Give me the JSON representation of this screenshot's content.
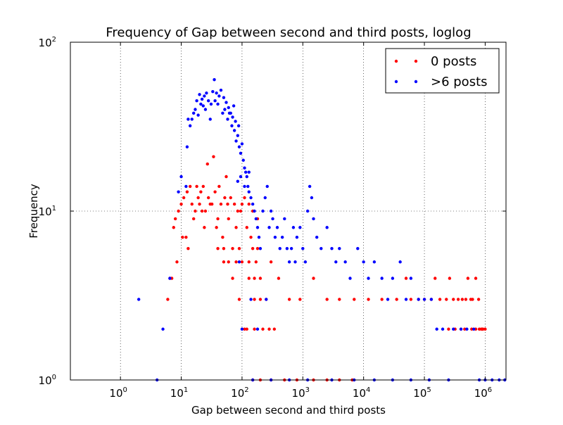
{
  "chart_data": {
    "type": "scatter",
    "title": "Frequency of Gap between second and third posts, loglog",
    "xlabel": "Gap between second and third posts",
    "ylabel": "Frequency",
    "xscale": "log",
    "yscale": "log",
    "xlim": [
      0.15,
      2200000
    ],
    "ylim": [
      1,
      100
    ],
    "grid": true,
    "legend_position": "top-right",
    "x_ticks": [
      {
        "value": 1,
        "base": "10",
        "exp": "0"
      },
      {
        "value": 10,
        "base": "10",
        "exp": "1"
      },
      {
        "value": 100,
        "base": "10",
        "exp": "2"
      },
      {
        "value": 1000,
        "base": "10",
        "exp": "3"
      },
      {
        "value": 10000,
        "base": "10",
        "exp": "4"
      },
      {
        "value": 100000,
        "base": "10",
        "exp": "5"
      },
      {
        "value": 1000000,
        "base": "10",
        "exp": "6"
      }
    ],
    "y_ticks": [
      {
        "value": 1,
        "base": "10",
        "exp": "0"
      },
      {
        "value": 10,
        "base": "10",
        "exp": "1"
      },
      {
        "value": 100,
        "base": "10",
        "exp": "2"
      }
    ],
    "series": [
      {
        "name": "0 posts",
        "color": "#ff0000",
        "points": [
          [
            6,
            3
          ],
          [
            6.5,
            4
          ],
          [
            7,
            4
          ],
          [
            7.5,
            8
          ],
          [
            8,
            9
          ],
          [
            8.5,
            5
          ],
          [
            9,
            10
          ],
          [
            10,
            11
          ],
          [
            10.5,
            7
          ],
          [
            11,
            12
          ],
          [
            12,
            7
          ],
          [
            12.5,
            13
          ],
          [
            13,
            6
          ],
          [
            14,
            14
          ],
          [
            15,
            11
          ],
          [
            16,
            9
          ],
          [
            17,
            10
          ],
          [
            18,
            14
          ],
          [
            19,
            12
          ],
          [
            20,
            11
          ],
          [
            21,
            13
          ],
          [
            22,
            10
          ],
          [
            23,
            14
          ],
          [
            24,
            8
          ],
          [
            25,
            10
          ],
          [
            27,
            19
          ],
          [
            28,
            12
          ],
          [
            30,
            11
          ],
          [
            32,
            11
          ],
          [
            34,
            21
          ],
          [
            36,
            13
          ],
          [
            38,
            8
          ],
          [
            40,
            9
          ],
          [
            42,
            14
          ],
          [
            45,
            11
          ],
          [
            48,
            7
          ],
          [
            50,
            6
          ],
          [
            52,
            12
          ],
          [
            55,
            16
          ],
          [
            58,
            11
          ],
          [
            60,
            9
          ],
          [
            65,
            12
          ],
          [
            70,
            6
          ],
          [
            75,
            11
          ],
          [
            80,
            8
          ],
          [
            85,
            10
          ],
          [
            90,
            6
          ],
          [
            95,
            10
          ],
          [
            100,
            11
          ],
          [
            110,
            12
          ],
          [
            120,
            8
          ],
          [
            130,
            5
          ],
          [
            140,
            7
          ],
          [
            150,
            6
          ],
          [
            160,
            4
          ],
          [
            170,
            5
          ],
          [
            180,
            6
          ],
          [
            200,
            4
          ],
          [
            60,
            5
          ],
          [
            80,
            5
          ],
          [
            100,
            5
          ],
          [
            130,
            4
          ],
          [
            160,
            3
          ],
          [
            200,
            3
          ],
          [
            250,
            3
          ],
          [
            120,
            2
          ],
          [
            160,
            2
          ],
          [
            220,
            2
          ],
          [
            280,
            2
          ],
          [
            340,
            2
          ],
          [
            70,
            4
          ],
          [
            90,
            3
          ],
          [
            110,
            2
          ],
          [
            50,
            5
          ],
          [
            40,
            6
          ],
          [
            150,
            10
          ],
          [
            180,
            9
          ],
          [
            130,
            11
          ],
          [
            300,
            5
          ],
          [
            400,
            4
          ],
          [
            600,
            3
          ],
          [
            900,
            3
          ],
          [
            1500,
            4
          ],
          [
            2500,
            3
          ],
          [
            4000,
            3
          ],
          [
            7000,
            3
          ],
          [
            12000,
            3
          ],
          [
            20000,
            3
          ],
          [
            35000,
            3
          ],
          [
            50000,
            4
          ],
          [
            60000,
            3
          ],
          [
            80000,
            3
          ],
          [
            100000,
            3
          ],
          [
            130000,
            3
          ],
          [
            150000,
            4
          ],
          [
            180000,
            3
          ],
          [
            230000,
            3
          ],
          [
            260000,
            4
          ],
          [
            300000,
            3
          ],
          [
            360000,
            3
          ],
          [
            420000,
            3
          ],
          [
            480000,
            3
          ],
          [
            520000,
            4
          ],
          [
            580000,
            3
          ],
          [
            620000,
            3
          ],
          [
            700000,
            4
          ],
          [
            780000,
            3
          ],
          [
            860000,
            2
          ],
          [
            920000,
            2
          ],
          [
            1000000,
            2
          ],
          [
            460000,
            2
          ],
          [
            600000,
            2
          ],
          [
            700000,
            2
          ],
          [
            800000,
            2
          ],
          [
            900000,
            2
          ],
          [
            250000,
            2
          ],
          [
            320000,
            2
          ],
          [
            400000,
            2
          ],
          [
            150,
            1
          ],
          [
            200,
            1
          ],
          [
            300,
            1
          ],
          [
            500,
            1
          ],
          [
            800,
            1
          ],
          [
            1500,
            1
          ],
          [
            2500,
            1
          ],
          [
            4000,
            1
          ],
          [
            6500,
            1
          ]
        ]
      },
      {
        "name": ">6 posts",
        "color": "#0000ff",
        "points": [
          [
            2,
            3
          ],
          [
            4,
            1
          ],
          [
            5,
            2
          ],
          [
            6.5,
            4
          ],
          [
            9,
            13
          ],
          [
            10,
            16
          ],
          [
            12,
            14
          ],
          [
            12.5,
            24
          ],
          [
            13,
            35
          ],
          [
            14,
            32
          ],
          [
            15,
            35
          ],
          [
            16,
            38
          ],
          [
            17,
            40
          ],
          [
            18,
            45
          ],
          [
            19,
            37
          ],
          [
            20,
            49
          ],
          [
            21,
            43
          ],
          [
            22,
            46
          ],
          [
            23,
            42
          ],
          [
            24,
            48
          ],
          [
            25,
            40
          ],
          [
            26,
            50
          ],
          [
            28,
            45
          ],
          [
            30,
            35
          ],
          [
            31,
            43
          ],
          [
            33,
            51
          ],
          [
            35,
            60
          ],
          [
            36,
            45
          ],
          [
            38,
            50
          ],
          [
            40,
            43
          ],
          [
            42,
            48
          ],
          [
            45,
            52
          ],
          [
            48,
            38
          ],
          [
            50,
            47
          ],
          [
            52,
            40
          ],
          [
            55,
            44
          ],
          [
            58,
            35
          ],
          [
            60,
            41
          ],
          [
            62,
            38
          ],
          [
            65,
            38
          ],
          [
            68,
            32
          ],
          [
            70,
            36
          ],
          [
            73,
            42
          ],
          [
            75,
            30
          ],
          [
            78,
            34
          ],
          [
            80,
            26
          ],
          [
            85,
            28
          ],
          [
            88,
            32
          ],
          [
            90,
            24
          ],
          [
            95,
            22
          ],
          [
            100,
            25
          ],
          [
            105,
            20
          ],
          [
            110,
            18
          ],
          [
            115,
            17
          ],
          [
            120,
            16
          ],
          [
            125,
            14
          ],
          [
            130,
            13
          ],
          [
            140,
            12
          ],
          [
            150,
            11
          ],
          [
            160,
            10
          ],
          [
            170,
            9
          ],
          [
            180,
            8
          ],
          [
            190,
            7
          ],
          [
            200,
            6
          ],
          [
            220,
            10
          ],
          [
            240,
            12
          ],
          [
            260,
            14
          ],
          [
            280,
            8
          ],
          [
            300,
            10
          ],
          [
            320,
            9
          ],
          [
            350,
            7
          ],
          [
            380,
            8
          ],
          [
            420,
            6
          ],
          [
            460,
            7
          ],
          [
            500,
            9
          ],
          [
            550,
            6
          ],
          [
            600,
            5
          ],
          [
            650,
            6
          ],
          [
            700,
            8
          ],
          [
            750,
            5
          ],
          [
            800,
            7
          ],
          [
            900,
            8
          ],
          [
            1000,
            6
          ],
          [
            1100,
            5
          ],
          [
            1200,
            10
          ],
          [
            1300,
            14
          ],
          [
            1400,
            12
          ],
          [
            1500,
            9
          ],
          [
            1700,
            7
          ],
          [
            2000,
            6
          ],
          [
            2500,
            8
          ],
          [
            3000,
            6
          ],
          [
            3500,
            5
          ],
          [
            4000,
            6
          ],
          [
            5000,
            5
          ],
          [
            6000,
            4
          ],
          [
            8000,
            6
          ],
          [
            10000,
            5
          ],
          [
            12000,
            4
          ],
          [
            15000,
            5
          ],
          [
            20000,
            4
          ],
          [
            25000,
            3
          ],
          [
            30000,
            4
          ],
          [
            40000,
            5
          ],
          [
            50000,
            3
          ],
          [
            60000,
            4
          ],
          [
            80000,
            3
          ],
          [
            100000,
            3
          ],
          [
            130000,
            3
          ],
          [
            160000,
            2
          ],
          [
            200000,
            2
          ],
          [
            300000,
            2
          ],
          [
            400000,
            2
          ],
          [
            500000,
            2
          ],
          [
            650000,
            2
          ],
          [
            800000,
            1
          ],
          [
            1000000,
            1
          ],
          [
            1300000,
            1
          ],
          [
            1700000,
            1
          ],
          [
            2100000,
            1
          ],
          [
            250000,
            1
          ],
          [
            120000,
            1
          ],
          [
            60000,
            1
          ],
          [
            30000,
            1
          ],
          [
            15000,
            1
          ],
          [
            7000,
            1
          ],
          [
            3000,
            1
          ],
          [
            1200,
            1
          ],
          [
            600,
            1
          ],
          [
            300,
            1
          ],
          [
            150,
            1
          ],
          [
            100,
            2
          ],
          [
            180,
            2
          ],
          [
            250,
            3
          ],
          [
            140,
            3
          ],
          [
            90,
            5
          ],
          [
            110,
            14
          ],
          [
            95,
            16
          ],
          [
            85,
            15
          ],
          [
            130,
            17
          ]
        ]
      }
    ]
  }
}
